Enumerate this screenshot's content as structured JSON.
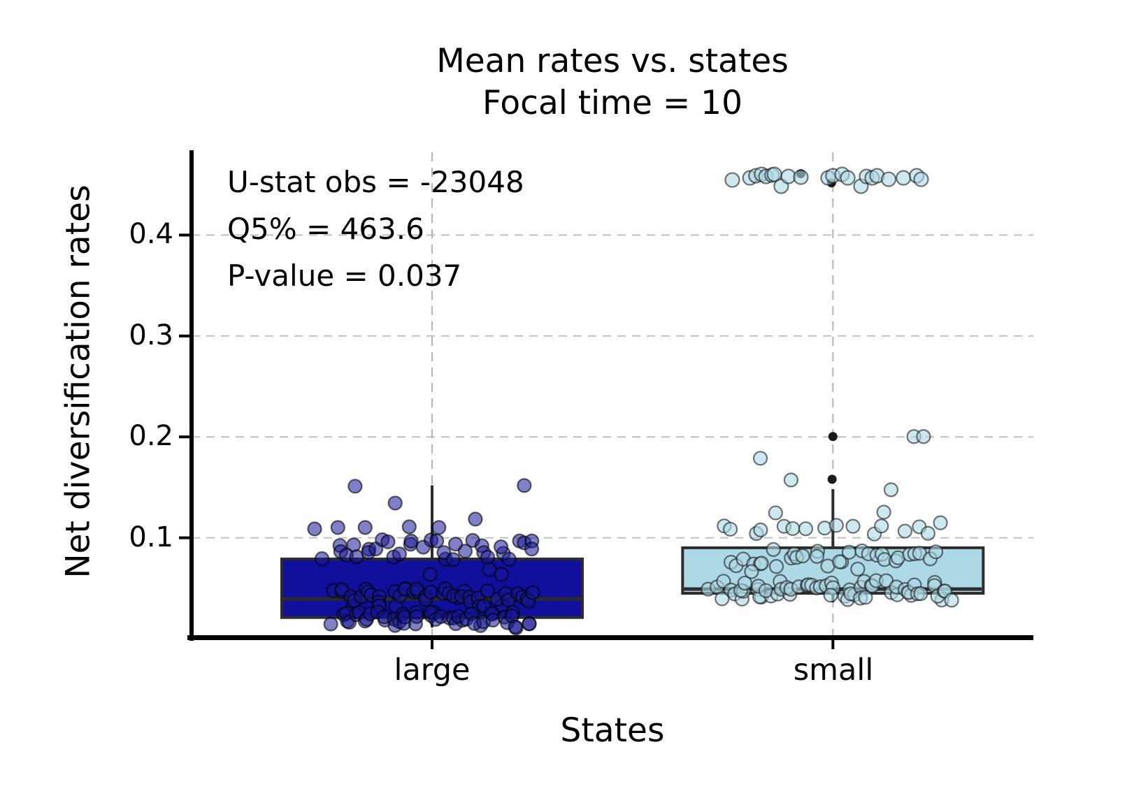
{
  "title": "Mean rates vs. states",
  "subtitle": "Focal time = 10",
  "annotation": {
    "u_stat": "U-stat obs = -23048",
    "q5": "Q5% = 463.6",
    "p_value": "P-value = 0.037"
  },
  "xlabel": "States",
  "ylabel": "Net diversification rates",
  "chart_data": {
    "type": "boxplot-strip",
    "categories": [
      "large",
      "small"
    ],
    "xlim": [
      -0.6,
      1.5
    ],
    "ylim": [
      0.0,
      0.482
    ],
    "yticks": [
      0.1,
      0.2,
      0.3,
      0.4
    ],
    "ytick_labels": [
      "0.1",
      "0.2",
      "0.3",
      "0.4"
    ],
    "grid": "dashed-horizontal-and-category-vlines",
    "jitter_seed": 7,
    "colors": {
      "background": "#ffffff",
      "grid_line": "#bfbfbf",
      "center_line": "#b3b3b3",
      "box_edge": "#2d2d2d",
      "spine": "#000000",
      "flier": "#1a1a1a",
      "large_box_fill": "#10109c",
      "large_point_fill": "rgba(23,23,152,0.55)",
      "large_point_stroke": "rgba(0,0,0,0.6)",
      "small_box_fill": "#ADD8E6",
      "small_point_fill": "rgba(173,216,230,0.6)",
      "small_point_stroke": "rgba(25,25,25,0.6)"
    },
    "series": [
      {
        "name": "large",
        "center": 0,
        "box": {
          "q1": 0.021,
          "median": 0.0395,
          "q3": 0.079,
          "whisker_low": 0.011,
          "whisker_high": 0.152
        },
        "box_fill": "#10109c",
        "point_fill": "rgba(23,23,152,0.55)",
        "point_stroke": "rgba(0,0,0,0.6)",
        "bands": [
          {
            "n": 34,
            "dx": 0.26,
            "v_min": 0.078,
            "v_max": 0.0985
          },
          {
            "n": 46,
            "dx": 0.25,
            "v_min": 0.032,
            "v_max": 0.0495
          },
          {
            "n": 48,
            "dx": 0.24,
            "v_min": 0.0105,
            "v_max": 0.0265
          }
        ],
        "scatter": [
          [
            -0.293,
            0.1088
          ],
          [
            -0.235,
            0.1102
          ],
          [
            -0.167,
            0.1102
          ],
          [
            -0.057,
            0.1109
          ],
          [
            0.017,
            0.1102
          ],
          [
            0.108,
            0.1185
          ],
          [
            -0.092,
            0.1344
          ],
          [
            -0.192,
            0.1511
          ],
          [
            0.23,
            0.1518
          ],
          [
            -0.005,
            0.0637
          ],
          [
            0.143,
            0.0686
          ],
          [
            0.173,
            0.0637
          ]
        ],
        "fliers": []
      },
      {
        "name": "small",
        "center": 1,
        "box": {
          "q1": 0.045,
          "median": 0.0492,
          "q3": 0.0901,
          "whisker_low": 0.036,
          "whisker_high": 0.1483
        },
        "box_fill": "#ADD8E6",
        "point_fill": "rgba(173,216,230,0.6)",
        "point_stroke": "rgba(25,25,25,0.6)",
        "bands": [
          {
            "n": 16,
            "dx": 0.28,
            "v_min": 0.1033,
            "v_max": 0.115
          },
          {
            "n": 30,
            "dx": 0.26,
            "v_min": 0.071,
            "v_max": 0.0895
          },
          {
            "n": 62,
            "dx": 0.3,
            "v_min": 0.038,
            "v_max": 0.058
          }
        ],
        "scatter": [
          [
            -0.181,
            0.1788
          ],
          [
            -0.1045,
            0.1573
          ],
          [
            0.145,
            0.1476
          ],
          [
            -0.143,
            0.1247
          ],
          [
            0.127,
            0.1254
          ],
          [
            0.202,
            0.2003
          ],
          [
            0.226,
            0.2003
          ],
          [
            -0.203,
            0.0665
          ],
          [
            0.062,
            0.069
          ],
          [
            -0.251,
            0.4546,
            10
          ],
          [
            -0.207,
            0.4567,
            10
          ],
          [
            -0.192,
            0.4588,
            10
          ],
          [
            -0.178,
            0.4602,
            10
          ],
          [
            -0.167,
            0.4581,
            10
          ],
          [
            -0.152,
            0.4595,
            10
          ],
          [
            -0.146,
            0.4602,
            10
          ],
          [
            -0.129,
            0.4484,
            10
          ],
          [
            -0.111,
            0.4581,
            10
          ],
          [
            -0.08,
            0.4574,
            10
          ],
          [
            -0.012,
            0.4567,
            10
          ],
          [
            0.0,
            0.4588,
            10
          ],
          [
            0.023,
            0.4602,
            10
          ],
          [
            0.037,
            0.4567,
            10
          ],
          [
            0.07,
            0.4484,
            10
          ],
          [
            0.084,
            0.4581,
            10
          ],
          [
            0.098,
            0.4567,
            10
          ],
          [
            0.11,
            0.4588,
            10
          ],
          [
            0.139,
            0.4553,
            10
          ],
          [
            0.176,
            0.4567,
            10
          ],
          [
            0.209,
            0.4588,
            10
          ],
          [
            0.22,
            0.4553,
            10
          ]
        ],
        "fliers": [
          [
            0.0,
            0.2003
          ],
          [
            -0.002,
            0.158
          ],
          [
            -0.0035,
            0.4518
          ],
          [
            -0.08,
            0.4608
          ]
        ]
      }
    ]
  }
}
